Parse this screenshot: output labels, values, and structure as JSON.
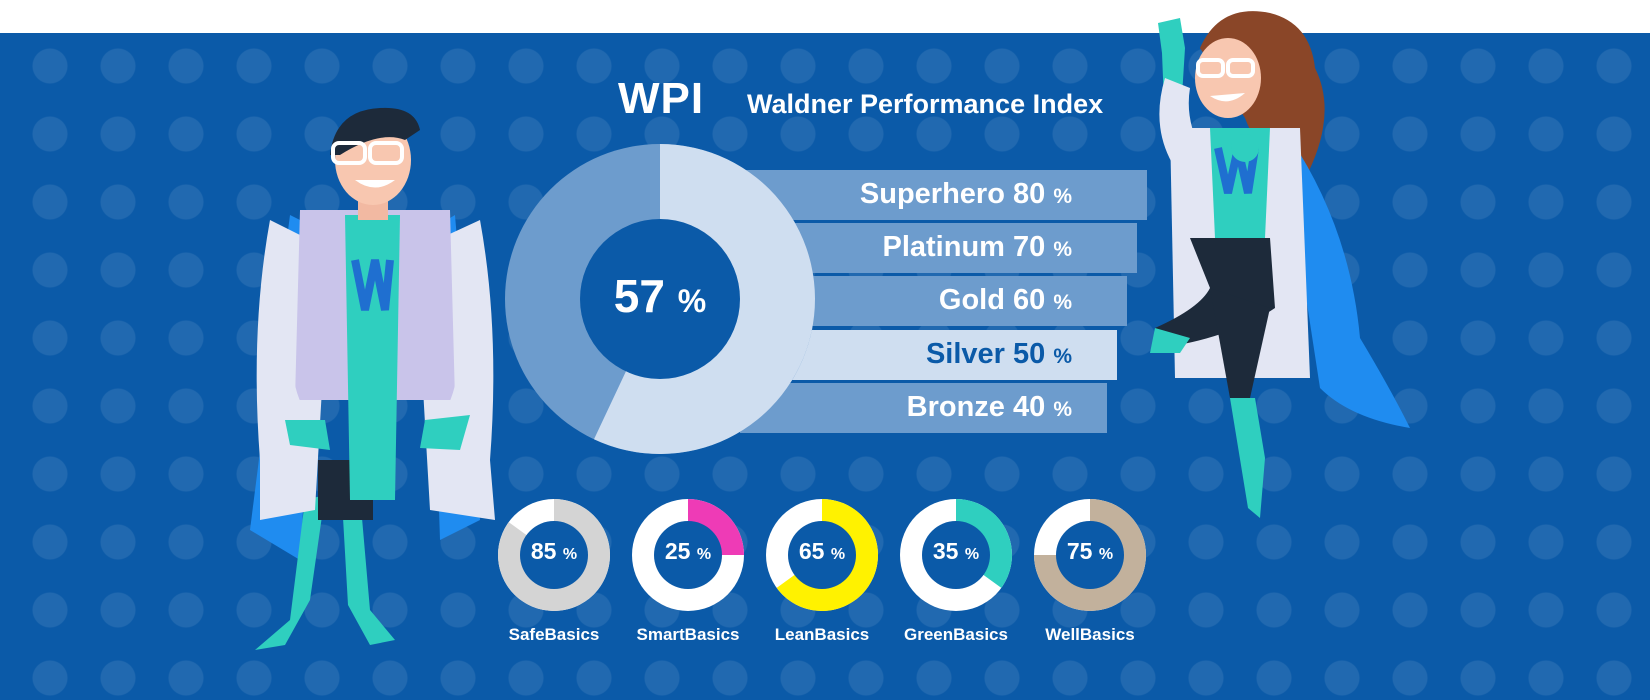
{
  "header": {
    "abbr": "WPI",
    "subtitle": "Waldner Performance Index"
  },
  "chart_data": [
    {
      "type": "bar",
      "categories": [
        "Superhero",
        "Platinum",
        "Gold",
        "Silver",
        "Bronze"
      ],
      "values": [
        80,
        70,
        60,
        50,
        40
      ],
      "unit": "%",
      "highlight": "Silver",
      "colors": {
        "bar": "#6d9ccd",
        "highlight_bar": "#cfdef0",
        "label": "#ffffff",
        "highlight_label": "#0b5aa8"
      }
    },
    {
      "type": "pie",
      "name": "WPI",
      "value": 57,
      "unit": "%",
      "colors": {
        "fill": "#cfdef0",
        "track": "#6d9ccd"
      }
    },
    {
      "type": "pie",
      "items": [
        {
          "name": "SafeBasics",
          "value": 85,
          "color": "#d4d4d4"
        },
        {
          "name": "SmartBasics",
          "value": 25,
          "color": "#ee3bb6"
        },
        {
          "name": "LeanBasics",
          "value": 65,
          "color": "#fff200"
        },
        {
          "name": "GreenBasics",
          "value": 35,
          "color": "#2fcfbf"
        },
        {
          "name": "WellBasics",
          "value": 75,
          "color": "#c2b19c"
        }
      ],
      "unit": "%",
      "track_color": "#ffffff"
    }
  ],
  "illustrations": {
    "left": "male-scientist-superhero",
    "right": "female-scientist-superhero"
  }
}
